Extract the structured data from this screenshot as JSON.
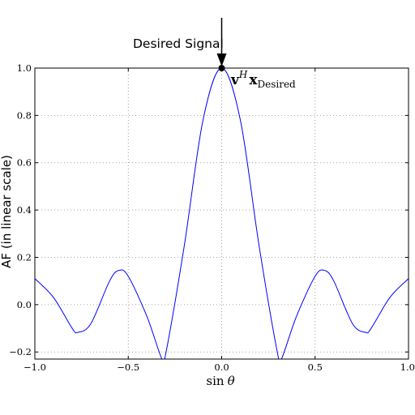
{
  "chart_data": {
    "type": "line",
    "title": "",
    "xlabel": "sin θ",
    "ylabel": "AF (in linear scale)",
    "xlim": [
      -1.0,
      1.0
    ],
    "ylim": [
      -0.23,
      1.0
    ],
    "xticks": [
      -1.0,
      -0.5,
      0.0,
      0.5,
      1.0
    ],
    "xtick_labels": [
      "−1.0",
      "−0.5",
      "0.0",
      "0.5",
      "1.0"
    ],
    "yticks": [
      -0.2,
      0.0,
      0.2,
      0.4,
      0.6,
      0.8,
      1.0
    ],
    "ytick_labels": [
      "−0.2",
      "0.0",
      "0.2",
      "0.4",
      "0.6",
      "0.8",
      "1.0"
    ],
    "grid": true,
    "line_color": "#0000ff",
    "series": [
      {
        "x": [
          -1.0,
          -0.9,
          -0.8,
          -0.77,
          -0.7,
          -0.6,
          -0.55,
          -0.5,
          -0.4,
          -0.32,
          -0.3,
          -0.2,
          -0.1,
          0.0,
          0.1,
          0.2,
          0.3,
          0.32,
          0.4,
          0.5,
          0.55,
          0.6,
          0.7,
          0.77,
          0.8,
          0.9,
          1.0
        ],
        "y": [
          0.11,
          0.03,
          -0.1,
          -0.117,
          -0.08,
          0.1,
          0.145,
          0.12,
          -0.05,
          -0.23,
          -0.21,
          0.25,
          0.78,
          1.0,
          0.78,
          0.25,
          -0.21,
          -0.23,
          -0.05,
          0.12,
          0.145,
          0.1,
          -0.08,
          -0.117,
          -0.1,
          0.03,
          0.11
        ]
      }
    ],
    "annotations": [
      {
        "text": "Desired Signal",
        "x": 0.0,
        "y": 1.0,
        "style": "arrow"
      },
      {
        "text": "v^H x_Desired",
        "x": 0.0,
        "y": 1.0
      }
    ]
  },
  "labels": {
    "ylabel": "AF (in linear scale)",
    "xlabel_func": "sin",
    "xlabel_var": "θ",
    "annotation": "Desired Signal",
    "math_v": "v",
    "math_sup": "H",
    "math_x": "x",
    "math_sub": "Desired"
  }
}
